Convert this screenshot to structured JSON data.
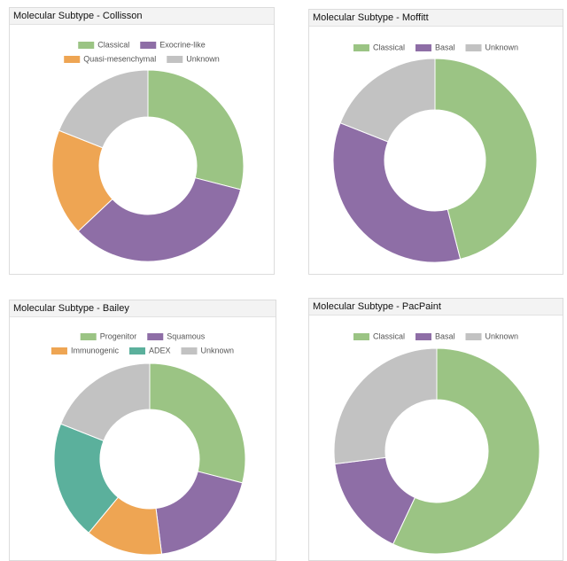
{
  "chart_data": [
    {
      "type": "doughnut",
      "title": "Molecular Subtype - Collisson",
      "categories": [
        "Classical",
        "Exocrine-like",
        "Quasi-mesenchymal",
        "Unknown"
      ],
      "values": [
        29,
        34,
        18,
        19
      ],
      "colors": [
        "#9bc484",
        "#8e6ea6",
        "#eea553",
        "#c2c2c2"
      ],
      "legend": "top"
    },
    {
      "type": "doughnut",
      "title": "Molecular Subtype - Moffitt",
      "categories": [
        "Classical",
        "Basal",
        "Unknown"
      ],
      "values": [
        46,
        35,
        19
      ],
      "colors": [
        "#9bc484",
        "#8e6ea6",
        "#c2c2c2"
      ],
      "legend": "top"
    },
    {
      "type": "doughnut",
      "title": "Molecular Subtype - Bailey",
      "categories": [
        "Progenitor",
        "Squamous",
        "Immunogenic",
        "ADEX",
        "Unknown"
      ],
      "values": [
        29,
        19,
        13,
        20,
        19
      ],
      "colors": [
        "#9bc484",
        "#8e6ea6",
        "#eea553",
        "#5bb09c",
        "#c2c2c2"
      ],
      "legend": "top"
    },
    {
      "type": "doughnut",
      "title": "Molecular Subtype - PacPaint",
      "categories": [
        "Classical",
        "Basal",
        "Unknown"
      ],
      "values": [
        57,
        16,
        27
      ],
      "colors": [
        "#9bc484",
        "#8e6ea6",
        "#c2c2c2"
      ],
      "legend": "top"
    }
  ]
}
